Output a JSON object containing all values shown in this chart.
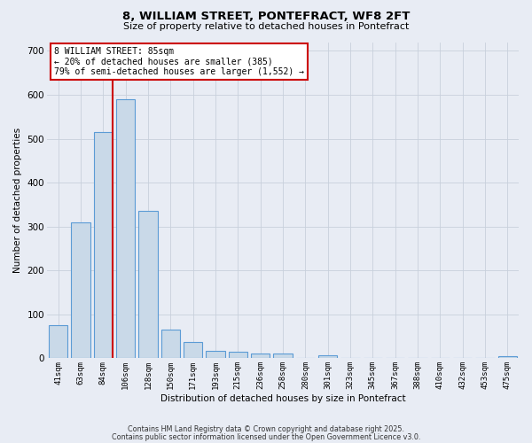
{
  "title_line1": "8, WILLIAM STREET, PONTEFRACT, WF8 2FT",
  "title_line2": "Size of property relative to detached houses in Pontefract",
  "xlabel": "Distribution of detached houses by size in Pontefract",
  "ylabel": "Number of detached properties",
  "bar_labels": [
    "41sqm",
    "63sqm",
    "84sqm",
    "106sqm",
    "128sqm",
    "150sqm",
    "171sqm",
    "193sqm",
    "215sqm",
    "236sqm",
    "258sqm",
    "280sqm",
    "301sqm",
    "323sqm",
    "345sqm",
    "367sqm",
    "388sqm",
    "410sqm",
    "432sqm",
    "453sqm",
    "475sqm"
  ],
  "bar_heights": [
    75,
    310,
    515,
    590,
    335,
    65,
    38,
    17,
    15,
    10,
    10,
    0,
    6,
    0,
    0,
    0,
    0,
    0,
    0,
    0,
    5
  ],
  "bar_color": "#c9d9e8",
  "bar_edge_color": "#5b9bd5",
  "annotation_line1": "8 WILLIAM STREET: 85sqm",
  "annotation_line2": "← 20% of detached houses are smaller (385)",
  "annotation_line3": "79% of semi-detached houses are larger (1,552) →",
  "annotation_box_color": "#ffffff",
  "annotation_box_edge": "#cc0000",
  "vline_color": "#cc0000",
  "grid_color": "#c8d0dc",
  "bg_color": "#e8ecf4",
  "ylim": [
    0,
    720
  ],
  "yticks": [
    0,
    100,
    200,
    300,
    400,
    500,
    600,
    700
  ],
  "footer_line1": "Contains HM Land Registry data © Crown copyright and database right 2025.",
  "footer_line2": "Contains public sector information licensed under the Open Government Licence v3.0."
}
